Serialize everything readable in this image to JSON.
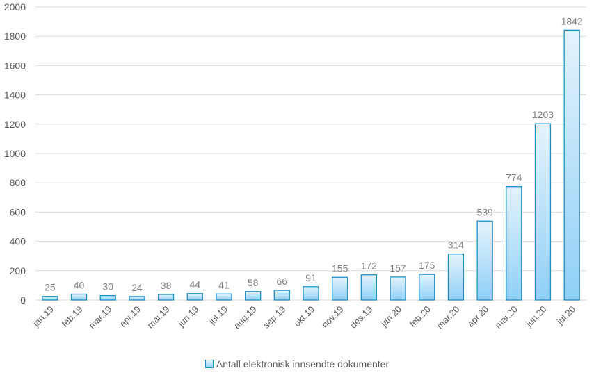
{
  "chart_data": {
    "type": "bar",
    "categories": [
      "jan.19",
      "feb.19",
      "mar.19",
      "apr.19",
      "mai.19",
      "jun.19",
      "jul.19",
      "aug.19",
      "sep.19",
      "okt.19",
      "nov.19",
      "des.19",
      "jan.20",
      "feb.20",
      "mar.20",
      "apr.20",
      "mai.20",
      "jun.20",
      "jul.20"
    ],
    "series": [
      {
        "name": "Antall elektronisk innsendte dokumenter",
        "values": [
          25,
          40,
          30,
          24,
          38,
          44,
          41,
          58,
          66,
          91,
          155,
          172,
          157,
          175,
          314,
          539,
          774,
          1203,
          1842
        ]
      }
    ],
    "value_labels": [
      "25",
      "40",
      "30",
      "24",
      "38",
      "44",
      "41",
      "58",
      "66",
      "91",
      "155",
      "172",
      "157",
      "175",
      "314",
      "539",
      "774",
      "1203",
      "1842"
    ],
    "yticks": [
      "0",
      "200",
      "400",
      "600",
      "800",
      "1000",
      "1200",
      "1400",
      "1600",
      "1800",
      "2000"
    ],
    "ylim": [
      0,
      2000
    ],
    "grid": true,
    "legend_position": "bottom",
    "colors": {
      "bar_fill_top": "#e4f3fc",
      "bar_fill_bottom": "#8fd0f7",
      "bar_stroke": "#1f8fc9"
    }
  }
}
